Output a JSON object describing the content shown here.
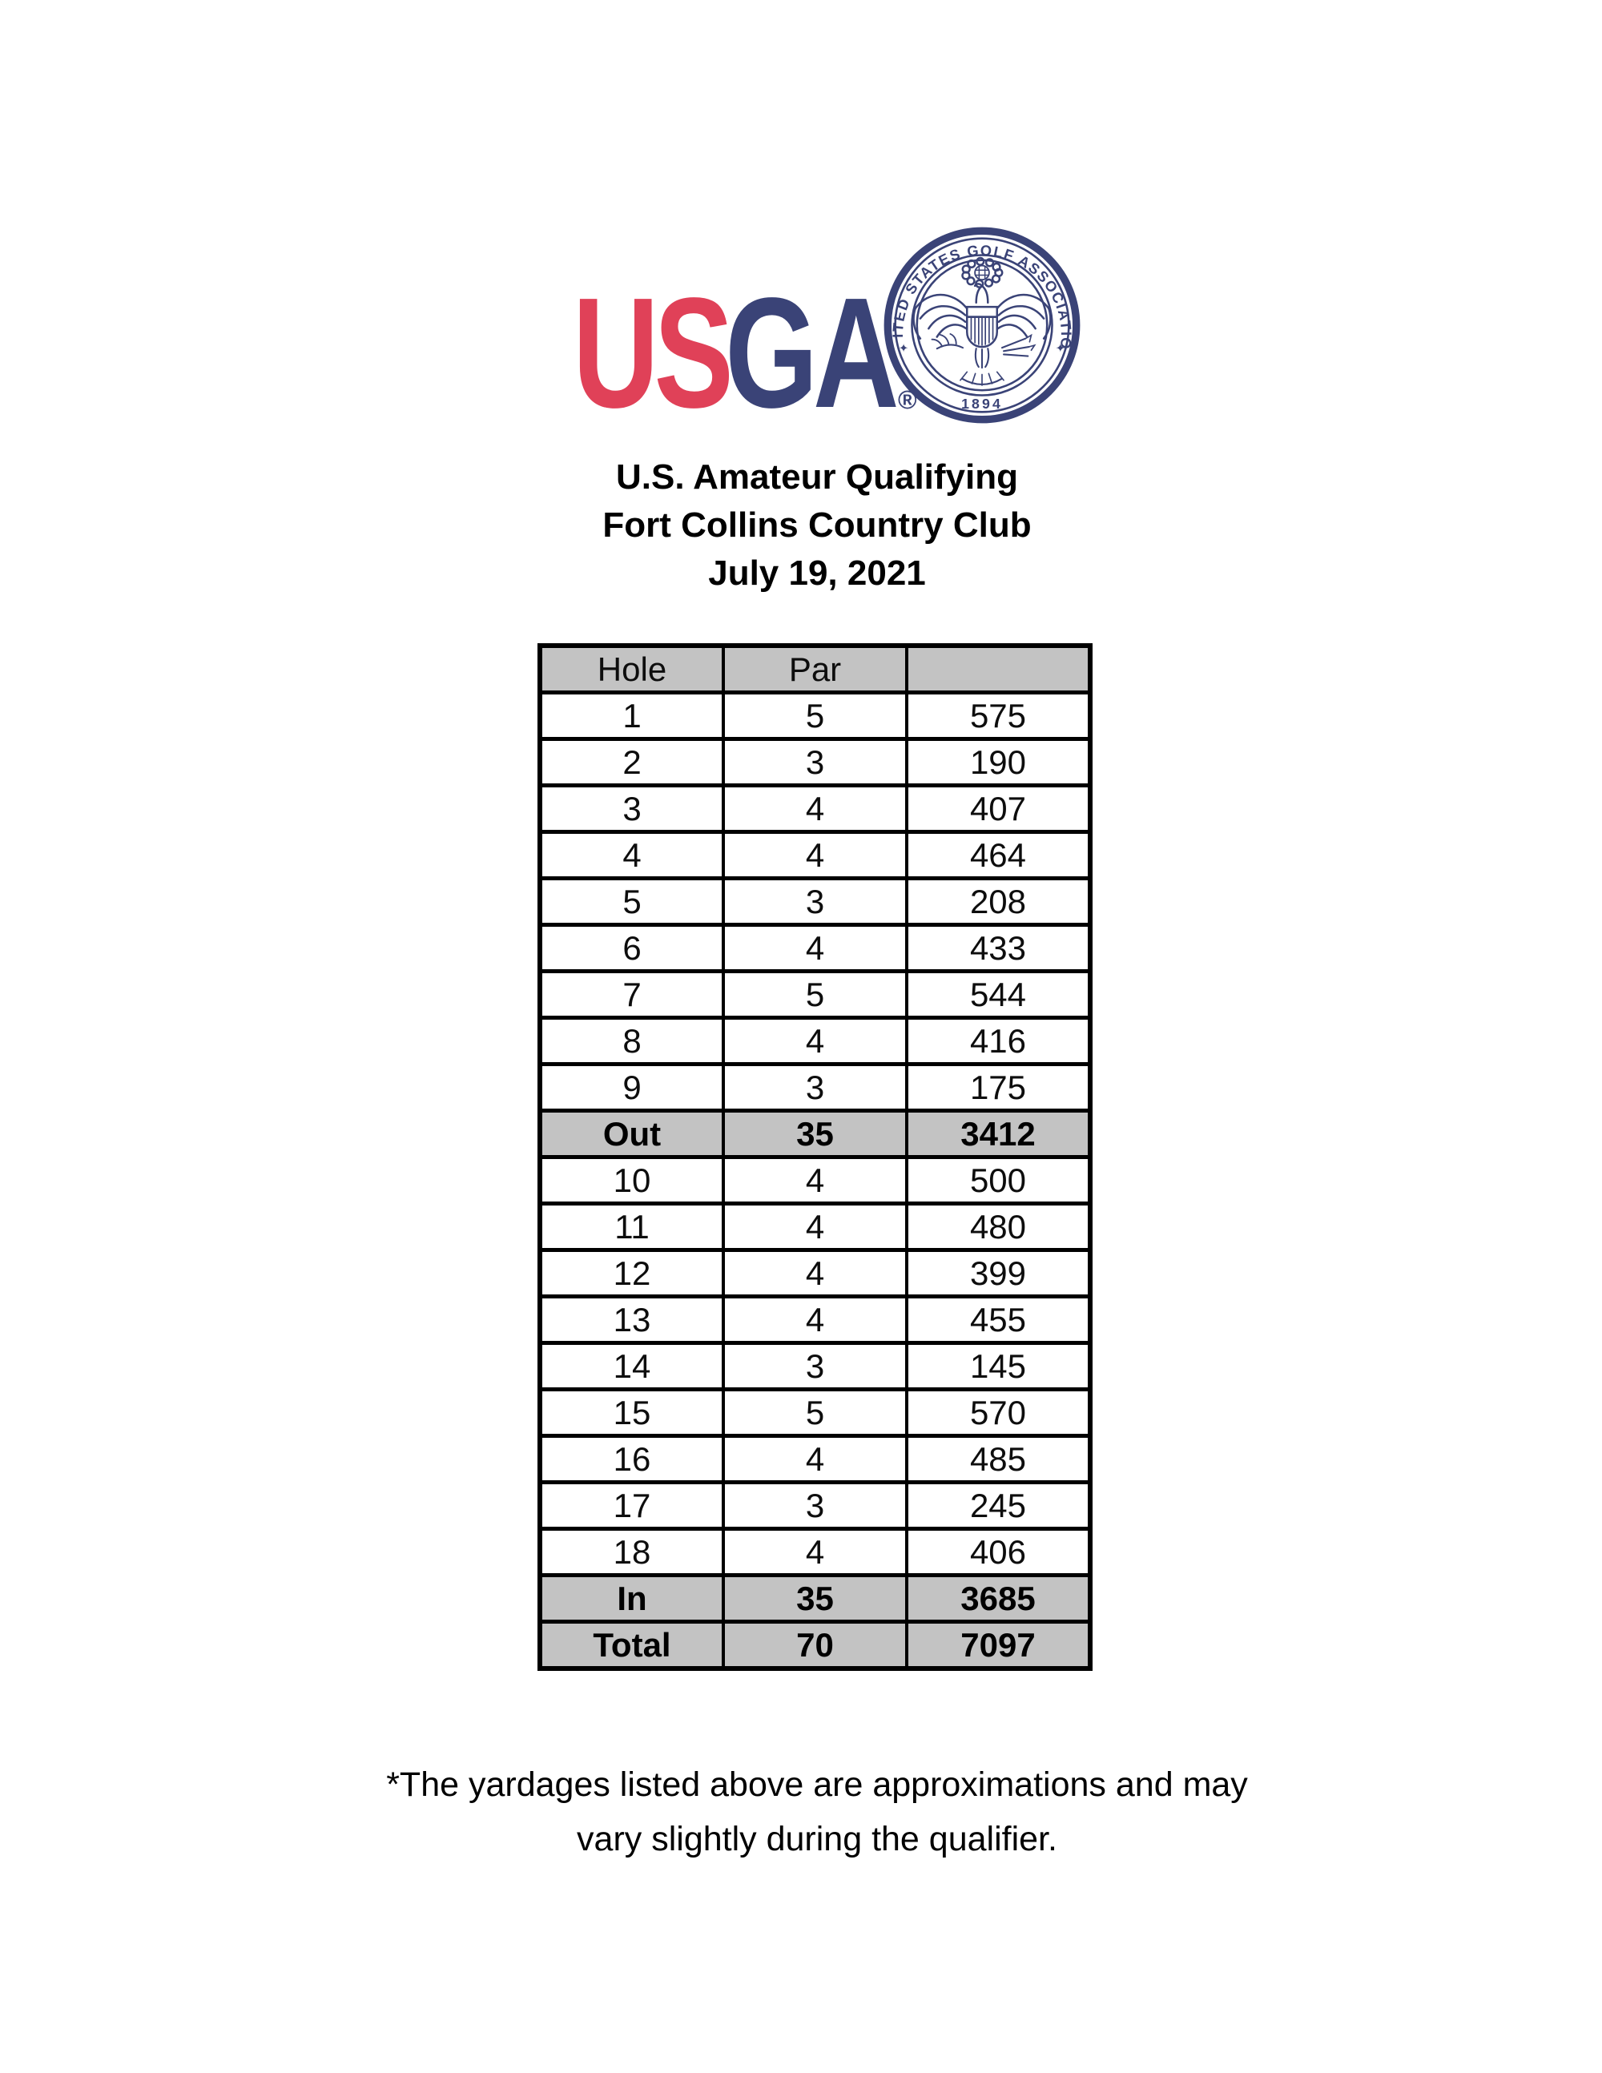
{
  "logo": {
    "wordmark_red": "US",
    "wordmark_blue": "GA",
    "registered_mark": "®",
    "seal": {
      "ring_text": "UNITED STATES GOLF ASSOCIATION",
      "year": "1894",
      "star_left": "✦",
      "star_right": "✦"
    },
    "colors": {
      "red": "#e04158",
      "navy": "#3a4377"
    }
  },
  "header": {
    "title_line1": "U.S. Amateur Qualifying",
    "title_line2": "Fort Collins Country Club",
    "title_line3": "July 19, 2021"
  },
  "table": {
    "columns": [
      "Hole",
      "Par",
      ""
    ],
    "header_bg": "#c3c3c3",
    "rows": [
      {
        "hole": "1",
        "par": "5",
        "yards": "575",
        "type": "normal"
      },
      {
        "hole": "2",
        "par": "3",
        "yards": "190",
        "type": "normal"
      },
      {
        "hole": "3",
        "par": "4",
        "yards": "407",
        "type": "normal"
      },
      {
        "hole": "4",
        "par": "4",
        "yards": "464",
        "type": "normal"
      },
      {
        "hole": "5",
        "par": "3",
        "yards": "208",
        "type": "normal"
      },
      {
        "hole": "6",
        "par": "4",
        "yards": "433",
        "type": "normal"
      },
      {
        "hole": "7",
        "par": "5",
        "yards": "544",
        "type": "normal"
      },
      {
        "hole": "8",
        "par": "4",
        "yards": "416",
        "type": "normal"
      },
      {
        "hole": "9",
        "par": "3",
        "yards": "175",
        "type": "normal"
      },
      {
        "hole": "Out",
        "par": "35",
        "yards": "3412",
        "type": "summary"
      },
      {
        "hole": "10",
        "par": "4",
        "yards": "500",
        "type": "normal"
      },
      {
        "hole": "11",
        "par": "4",
        "yards": "480",
        "type": "normal"
      },
      {
        "hole": "12",
        "par": "4",
        "yards": "399",
        "type": "normal"
      },
      {
        "hole": "13",
        "par": "4",
        "yards": "455",
        "type": "normal"
      },
      {
        "hole": "14",
        "par": "3",
        "yards": "145",
        "type": "normal"
      },
      {
        "hole": "15",
        "par": "5",
        "yards": "570",
        "type": "normal"
      },
      {
        "hole": "16",
        "par": "4",
        "yards": "485",
        "type": "normal"
      },
      {
        "hole": "17",
        "par": "3",
        "yards": "245",
        "type": "normal"
      },
      {
        "hole": "18",
        "par": "4",
        "yards": "406",
        "type": "normal"
      },
      {
        "hole": "In",
        "par": "35",
        "yards": "3685",
        "type": "summary"
      },
      {
        "hole": "Total",
        "par": "70",
        "yards": "7097",
        "type": "summary"
      }
    ]
  },
  "footnote": {
    "line1": "*The yardages listed above are approximations and may",
    "line2": "vary slightly during the qualifier."
  }
}
